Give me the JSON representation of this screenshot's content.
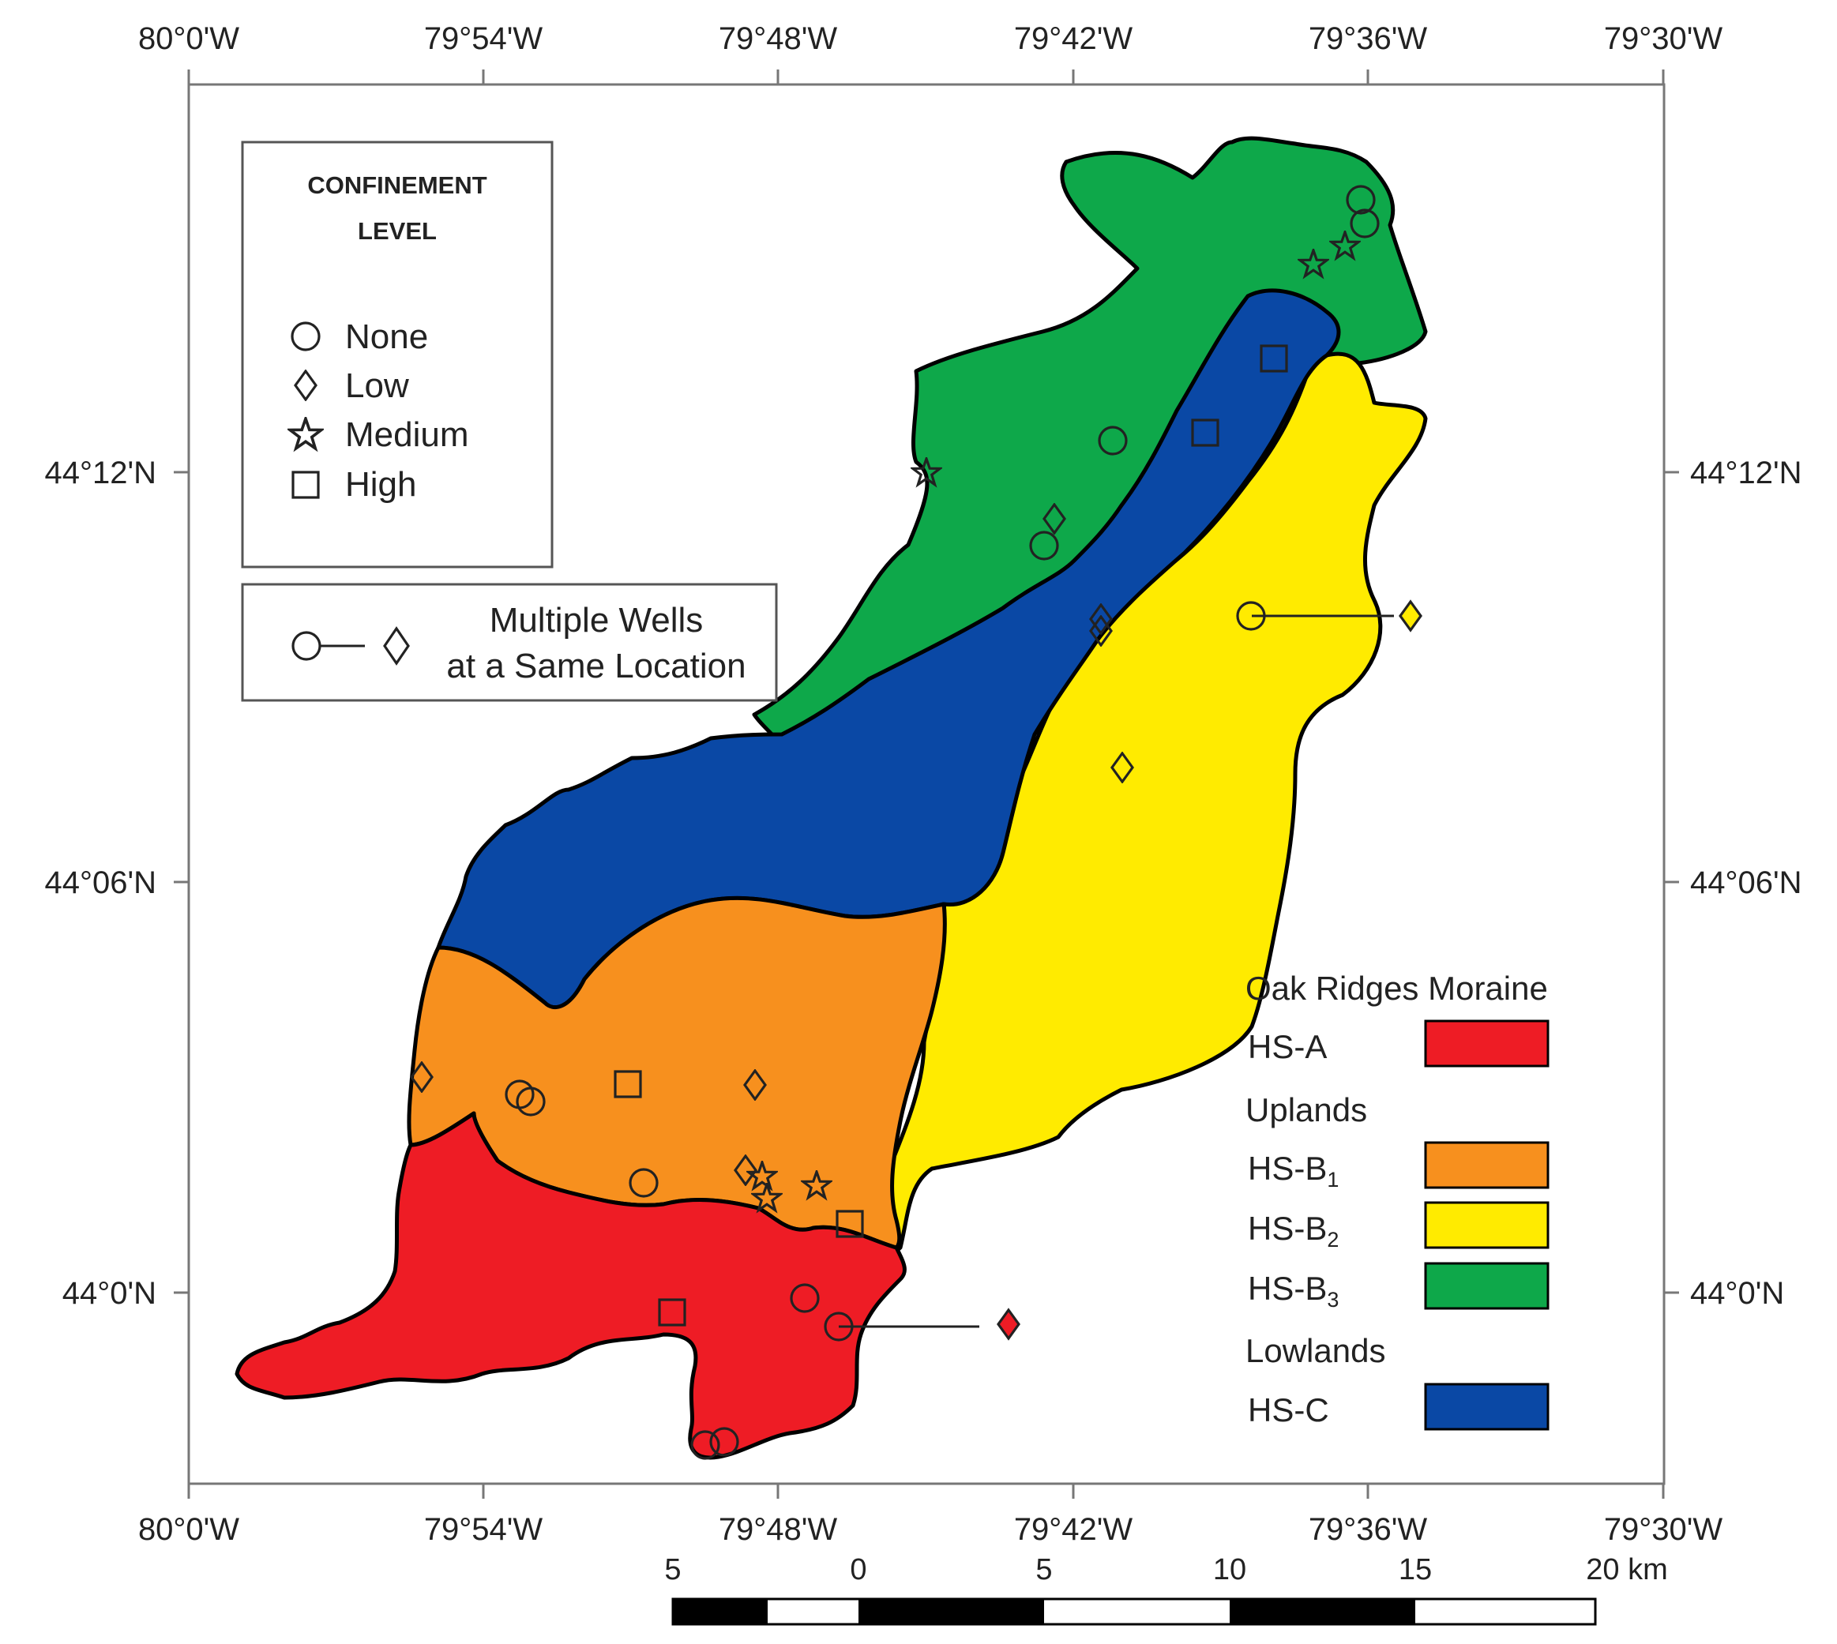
{
  "axes": {
    "top": [
      "80°0'W",
      "79°54'W",
      "79°48'W",
      "79°42'W",
      "79°36'W",
      "79°30'W"
    ],
    "bottom": [
      "80°0'W",
      "79°54'W",
      "79°48'W",
      "79°42'W",
      "79°36'W",
      "79°30'W"
    ],
    "left": [
      "44°12'N",
      "44°06'N",
      "44°0'N"
    ],
    "right": [
      "44°12'N",
      "44°06'N",
      "44°0'N"
    ]
  },
  "confinement_legend": {
    "title_line1": "CONFINEMENT",
    "title_line2": "LEVEL",
    "items": [
      {
        "label": "None",
        "icon": "circle"
      },
      {
        "label": "Low",
        "icon": "diamond"
      },
      {
        "label": "Medium",
        "icon": "star"
      },
      {
        "label": "High",
        "icon": "square"
      }
    ]
  },
  "multiple_wells_legend": {
    "line1": "Multiple Wells",
    "line2": "at a Same Location"
  },
  "region_legend": {
    "group1": "Oak Ridges Moraine",
    "group2": "Uplands",
    "group3": "Lowlands",
    "items": [
      {
        "label": "HS-A",
        "base": "HS-A",
        "sub": "",
        "color": "#ee1c25"
      },
      {
        "label": "HS-B1",
        "base": "HS-B",
        "sub": "1",
        "color": "#f7901e"
      },
      {
        "label": "HS-B2",
        "base": "HS-B",
        "sub": "2",
        "color": "#ffeb00"
      },
      {
        "label": "HS-B3",
        "base": "HS-B",
        "sub": "3",
        "color": "#0ea84a"
      },
      {
        "label": "HS-C",
        "base": "HS-C",
        "sub": "",
        "color": "#0a48a5"
      }
    ]
  },
  "scale_bar": {
    "ticks": [
      "5",
      "0",
      "5",
      "10",
      "15",
      "20 km"
    ]
  },
  "colors": {
    "hs_a": "#ee1c25",
    "hs_b1": "#f7901e",
    "hs_b2": "#ffeb00",
    "hs_b3": "#0ea84a",
    "hs_c": "#0a48a5"
  }
}
